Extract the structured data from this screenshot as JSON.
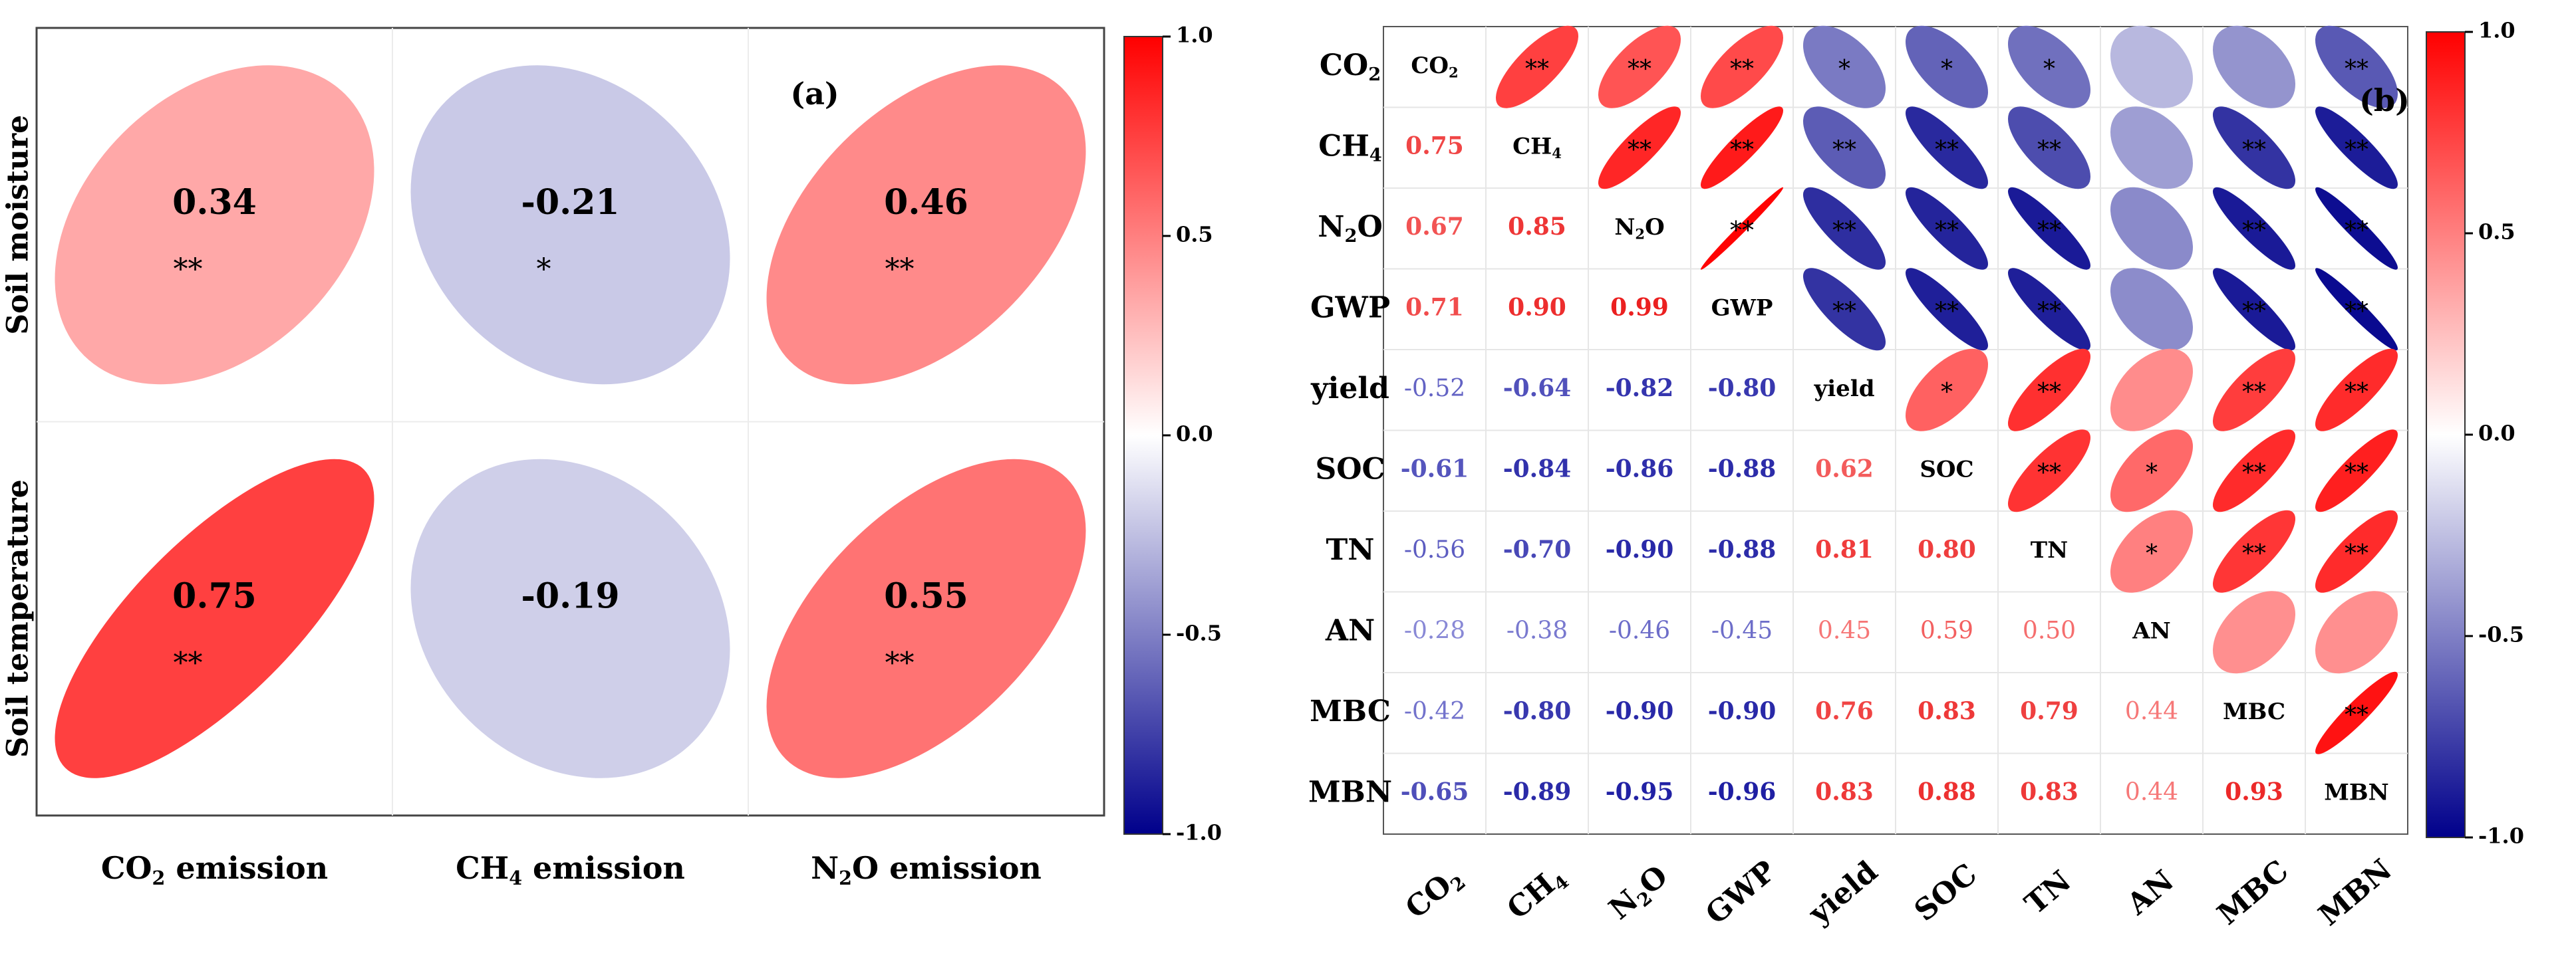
{
  "chart_data": [
    {
      "type": "heatmap",
      "panel_label": "(a)",
      "rows": [
        "Soil moisture",
        "Soil temperature"
      ],
      "cols": [
        {
          "pre": "CO",
          "sub": "2",
          "post": " emission"
        },
        {
          "pre": "CH",
          "sub": "4",
          "post": " emission"
        },
        {
          "pre": "N",
          "sub": "2",
          "post": "O emission"
        }
      ],
      "values": [
        [
          0.34,
          -0.21,
          0.46
        ],
        [
          0.75,
          -0.19,
          0.55
        ]
      ],
      "significance": [
        [
          "**",
          "*",
          "**"
        ],
        [
          "**",
          "",
          "**"
        ]
      ],
      "colorbar": {
        "min": -1.0,
        "max": 1.0,
        "ticks": [
          "1.0",
          "0.5",
          "0.0",
          "-0.5",
          "-1.0"
        ]
      }
    },
    {
      "type": "heatmap",
      "panel_label": "(b)",
      "variables": [
        {
          "pre": "CO",
          "sub": "2",
          "post": ""
        },
        {
          "pre": "CH",
          "sub": "4",
          "post": ""
        },
        {
          "pre": "N",
          "sub": "2",
          "post": "O"
        },
        {
          "pre": "GWP",
          "sub": "",
          "post": ""
        },
        {
          "pre": "yield",
          "sub": "",
          "post": ""
        },
        {
          "pre": "SOC",
          "sub": "",
          "post": ""
        },
        {
          "pre": "TN",
          "sub": "",
          "post": ""
        },
        {
          "pre": "AN",
          "sub": "",
          "post": ""
        },
        {
          "pre": "MBC",
          "sub": "",
          "post": ""
        },
        {
          "pre": "MBN",
          "sub": "",
          "post": ""
        }
      ],
      "matrix": [
        [
          1,
          0.75,
          0.67,
          0.71,
          -0.52,
          -0.61,
          -0.56,
          -0.28,
          -0.42,
          -0.65
        ],
        [
          0.75,
          1,
          0.85,
          0.9,
          -0.64,
          -0.84,
          -0.7,
          -0.38,
          -0.8,
          -0.89
        ],
        [
          0.67,
          0.85,
          1,
          0.99,
          -0.82,
          -0.86,
          -0.9,
          -0.46,
          -0.9,
          -0.95
        ],
        [
          0.71,
          0.9,
          0.99,
          1,
          -0.8,
          -0.88,
          -0.88,
          -0.45,
          -0.9,
          -0.96
        ],
        [
          -0.52,
          -0.64,
          -0.82,
          -0.8,
          1,
          0.62,
          0.81,
          0.45,
          0.76,
          0.83
        ],
        [
          -0.61,
          -0.84,
          -0.86,
          -0.88,
          0.62,
          1,
          0.8,
          0.59,
          0.83,
          0.88
        ],
        [
          -0.56,
          -0.7,
          -0.9,
          -0.88,
          0.81,
          0.8,
          1,
          0.5,
          0.79,
          0.83
        ],
        [
          -0.28,
          -0.38,
          -0.46,
          -0.45,
          0.45,
          0.59,
          0.5,
          1,
          0.44,
          0.44
        ],
        [
          -0.42,
          -0.8,
          -0.9,
          -0.9,
          0.76,
          0.83,
          0.79,
          0.44,
          1,
          0.93
        ],
        [
          -0.65,
          -0.89,
          -0.95,
          -0.96,
          0.83,
          0.88,
          0.83,
          0.44,
          0.93,
          1
        ]
      ],
      "significance_upper": [
        [
          "",
          "**",
          "**",
          "**",
          "*",
          "*",
          "*",
          "",
          "",
          "**"
        ],
        [
          "",
          "",
          "**",
          "**",
          "**",
          "**",
          "**",
          "",
          "**",
          "**"
        ],
        [
          "",
          "",
          "",
          "**",
          "**",
          "**",
          "**",
          "",
          "**",
          "**"
        ],
        [
          "",
          "",
          "",
          "",
          "**",
          "**",
          "**",
          "",
          "**",
          "**"
        ],
        [
          "",
          "",
          "",
          "",
          "",
          "*",
          "**",
          "",
          "**",
          "**"
        ],
        [
          "",
          "",
          "",
          "",
          "",
          "",
          "**",
          "*",
          "**",
          "**"
        ],
        [
          "",
          "",
          "",
          "",
          "",
          "",
          "",
          "*",
          "**",
          "**"
        ],
        [
          "",
          "",
          "",
          "",
          "",
          "",
          "",
          "",
          "",
          ""
        ],
        [
          "",
          "",
          "",
          "",
          "",
          "",
          "",
          "",
          "",
          "**"
        ],
        [
          "",
          "",
          "",
          "",
          "",
          "",
          "",
          "",
          "",
          ""
        ]
      ],
      "colorbar": {
        "min": -1.0,
        "max": 1.0,
        "ticks": [
          "1.0",
          "0.5",
          "0.0",
          "-0.5",
          "-1.0"
        ]
      }
    }
  ]
}
